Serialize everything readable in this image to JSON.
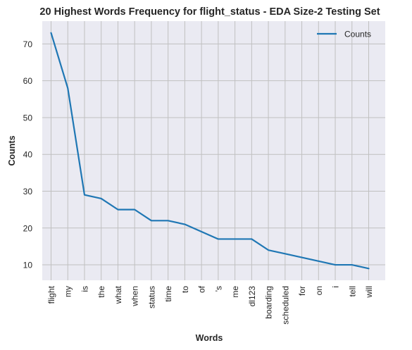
{
  "chart_data": {
    "type": "line",
    "title": "20 Highest Words Frequency for flight_status - EDA Size-2 Testing Set",
    "xlabel": "Words",
    "ylabel": "Counts",
    "categories": [
      "flight",
      "my",
      "is",
      "the",
      "what",
      "when",
      "status",
      "time",
      "to",
      "of",
      "'s",
      "me",
      "dl123",
      "boarding",
      "scheduled",
      "for",
      "on",
      "i",
      "tell",
      "will"
    ],
    "series": [
      {
        "name": "Counts",
        "color": "#1f77b4",
        "values": [
          73,
          58,
          29,
          28,
          25,
          25,
          22,
          22,
          21,
          19,
          17,
          17,
          17,
          14,
          13,
          12,
          11,
          10,
          10,
          9
        ]
      }
    ],
    "yticks": [
      10,
      20,
      30,
      40,
      50,
      60,
      70
    ],
    "ylim": [
      5.8,
      76.2
    ],
    "grid": true,
    "legend": "top-right",
    "colors": {
      "plot_bg": "#eaeaf2",
      "grid": "#c0c0c0",
      "line": "#1f77b4"
    }
  }
}
